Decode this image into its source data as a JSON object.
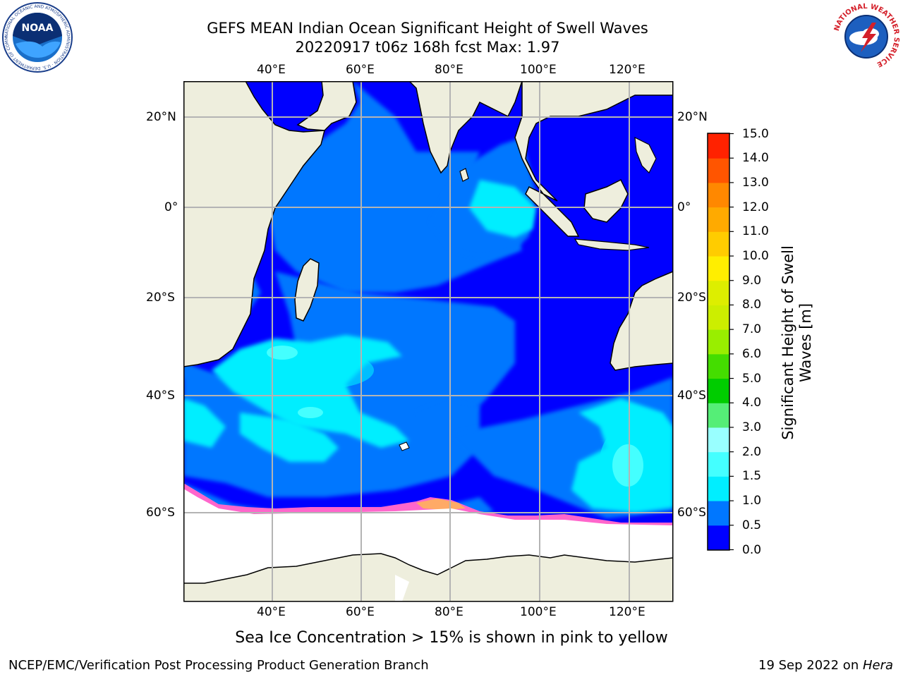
{
  "title": {
    "line1": "GEFS MEAN Indian Ocean Significant Height of Swell Waves",
    "line2": "20220917 t06z 168h fcst   Max: 1.97"
  },
  "map": {
    "lon_labels": [
      "40°E",
      "60°E",
      "80°E",
      "100°E",
      "120°E"
    ],
    "lat_labels": [
      "20°N",
      "0°",
      "20°S",
      "40°S",
      "60°S"
    ],
    "colors": {
      "land": "#eeeedd",
      "ice": "#ffffff",
      "grid": "#b4b4b4",
      "coast": "#000000"
    },
    "sea_ice_colors": [
      "#ff66cc",
      "#ffaa66",
      "#ffdd22"
    ]
  },
  "colorbar": {
    "label": "Significant Height of Swell Waves [m]",
    "label_line1": "Significant Height of Swell",
    "label_line2": "Waves [m]",
    "ticks": [
      "0.0",
      "0.5",
      "1.0",
      "1.5",
      "2.0",
      "3.0",
      "4.0",
      "5.0",
      "6.0",
      "7.0",
      "8.0",
      "9.0",
      "10.0",
      "11.0",
      "12.0",
      "13.0",
      "14.0",
      "15.0"
    ],
    "colors": [
      "#0000ff",
      "#0077ff",
      "#00eeff",
      "#44ffff",
      "#99ffff",
      "#55ee77",
      "#00cc00",
      "#44dd00",
      "#99ee00",
      "#ccee00",
      "#ddee00",
      "#ffee00",
      "#ffcc00",
      "#ffaa00",
      "#ff8800",
      "#ff5500",
      "#ff2200",
      "#ff0000"
    ]
  },
  "note": "Sea Ice Concentration > 15% is shown in pink to yellow",
  "footer": {
    "left": "NCEP/EMC/Verification Post Processing Product Generation Branch",
    "date": "19 Sep 2022 on ",
    "machine": "Hera"
  },
  "logos": {
    "noaa_text": "NOAA",
    "noaa_ring_text": "NATIONAL OCEANIC AND ATMOSPHERIC ADMINISTRATION · U.S. DEPARTMENT OF COMMERCE",
    "nws_ring_text": "NATIONAL WEATHER SERVICE"
  }
}
